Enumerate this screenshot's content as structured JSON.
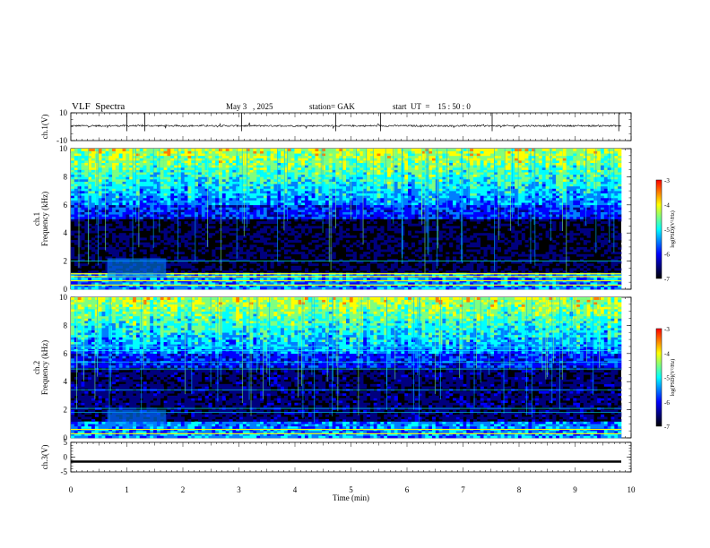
{
  "header": {
    "title": "VLF  Spectra",
    "date": "May 3   , 2025",
    "station": "station= GAK",
    "start": "start  UT  =    15 : 50 : 0"
  },
  "chart_data": [
    {
      "type": "line",
      "ylabel": "ch.1(V)",
      "ylim": [
        -10,
        10
      ],
      "yticks": [
        "10",
        "-10"
      ],
      "xlim": [
        0,
        10
      ],
      "baseline_value": 0,
      "grid": false
    },
    {
      "type": "heatmap",
      "ylabel": "ch.1\nFrequency  (kHz)",
      "ylim": [
        0,
        10
      ],
      "yticks": [
        "0",
        "2",
        "4",
        "6",
        "8",
        "10"
      ],
      "xlim": [
        0,
        10
      ],
      "colorbar": {
        "label": "log(PSD)(V²/Hz)",
        "range": [
          -7,
          -3
        ],
        "ticks": [
          "-3",
          "-4",
          "-5",
          "-6",
          "-7"
        ]
      }
    },
    {
      "type": "heatmap",
      "ylabel": "ch.2\nFrequency  (kHz)",
      "ylim": [
        0,
        10
      ],
      "yticks": [
        "0",
        "2",
        "4",
        "6",
        "8",
        "10"
      ],
      "xlim": [
        0,
        10
      ],
      "colorbar": {
        "label": "log(PSD)(V²/Hz)",
        "range": [
          -7,
          -3
        ],
        "ticks": [
          "-3",
          "-4",
          "-5",
          "-6",
          "-7"
        ]
      }
    },
    {
      "type": "line",
      "ylabel": "ch.3(V)",
      "ylim": [
        -5,
        5
      ],
      "yticks": [
        "5",
        "0",
        "-5"
      ],
      "xlim": [
        0,
        10
      ],
      "baseline_value": -1.5,
      "xlabel": "Time  (min)",
      "xticks": [
        "0",
        "1",
        "2",
        "3",
        "4",
        "5",
        "6",
        "7",
        "8",
        "9",
        "10"
      ]
    }
  ],
  "colormap": [
    "#000000",
    "#00007f",
    "#0000ff",
    "#007fff",
    "#00ffff",
    "#7fff7f",
    "#ffff00",
    "#ff7f00",
    "#ff0000",
    "#ffffff"
  ]
}
